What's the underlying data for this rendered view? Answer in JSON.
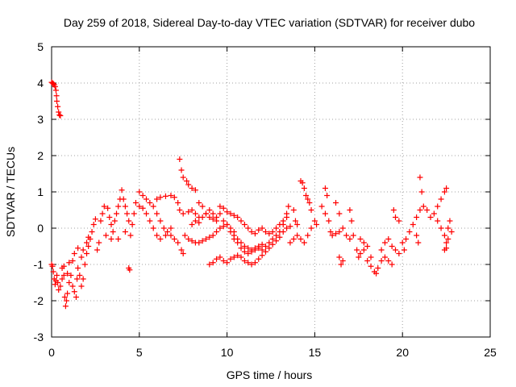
{
  "chart_data": {
    "type": "scatter",
    "title": "Day 259 of 2018, Sidereal Day-to-day VTEC variation (SDTVAR) for receiver dubo",
    "xlabel": "GPS time / hours",
    "ylabel": "SDTVAR / TECUs",
    "xlim": [
      0,
      25
    ],
    "ylim": [
      -3,
      5
    ],
    "xticks": [
      0,
      5,
      10,
      15,
      20,
      25
    ],
    "yticks": [
      -3,
      -2,
      -1,
      0,
      1,
      2,
      3,
      4,
      5
    ],
    "grid": true,
    "marker": "+",
    "color": "#ff0000",
    "series": [
      {
        "name": "SDTVAR",
        "points": [
          [
            0.0,
            4.02
          ],
          [
            0.05,
            4.0
          ],
          [
            0.1,
            3.98
          ],
          [
            0.15,
            3.95
          ],
          [
            0.2,
            3.9
          ],
          [
            0.25,
            3.8
          ],
          [
            0.28,
            3.65
          ],
          [
            0.3,
            3.5
          ],
          [
            0.35,
            3.35
          ],
          [
            0.4,
            3.2
          ],
          [
            0.45,
            3.12
          ],
          [
            0.5,
            3.1
          ],
          [
            0.0,
            -1.0
          ],
          [
            0.05,
            -1.05
          ],
          [
            0.1,
            -1.2
          ],
          [
            0.15,
            -1.4
          ],
          [
            0.2,
            -1.55
          ],
          [
            0.25,
            -1.45
          ],
          [
            0.3,
            -1.3
          ],
          [
            0.35,
            -1.5
          ],
          [
            0.4,
            -1.7
          ],
          [
            0.5,
            -1.6
          ],
          [
            0.6,
            -1.4
          ],
          [
            0.7,
            -1.3
          ],
          [
            0.75,
            -1.9
          ],
          [
            0.8,
            -2.15
          ],
          [
            0.85,
            -2.0
          ],
          [
            0.9,
            -1.8
          ],
          [
            1.0,
            -1.5
          ],
          [
            1.1,
            -1.3
          ],
          [
            1.2,
            -1.6
          ],
          [
            1.3,
            -1.75
          ],
          [
            1.4,
            -1.9
          ],
          [
            1.45,
            -1.4
          ],
          [
            1.5,
            -1.1
          ],
          [
            1.6,
            -1.3
          ],
          [
            1.7,
            -1.6
          ],
          [
            1.8,
            -1.4
          ],
          [
            1.9,
            -1.0
          ],
          [
            2.0,
            -0.7
          ],
          [
            2.1,
            -0.5
          ],
          [
            2.2,
            -0.3
          ],
          [
            2.3,
            -0.1
          ],
          [
            2.4,
            0.1
          ],
          [
            2.5,
            0.25
          ],
          [
            0.6,
            -1.1
          ],
          [
            0.7,
            -1.05
          ],
          [
            0.9,
            -1.25
          ],
          [
            1.0,
            -0.95
          ],
          [
            1.2,
            -0.9
          ],
          [
            1.3,
            -0.7
          ],
          [
            1.5,
            -0.55
          ],
          [
            1.7,
            -0.8
          ],
          [
            1.8,
            -0.6
          ],
          [
            2.0,
            -0.4
          ],
          [
            2.1,
            -0.25
          ],
          [
            2.6,
            -0.6
          ],
          [
            2.7,
            -0.4
          ],
          [
            2.8,
            0.2
          ],
          [
            2.9,
            0.4
          ],
          [
            3.0,
            0.6
          ],
          [
            3.2,
            0.55
          ],
          [
            3.3,
            0.3
          ],
          [
            3.4,
            0.1
          ],
          [
            3.5,
            -0.1
          ],
          [
            3.6,
            0.2
          ],
          [
            3.7,
            0.4
          ],
          [
            3.8,
            0.6
          ],
          [
            3.9,
            0.8
          ],
          [
            4.0,
            1.05
          ],
          [
            4.1,
            0.8
          ],
          [
            4.2,
            0.6
          ],
          [
            4.3,
            0.4
          ],
          [
            4.4,
            0.2
          ],
          [
            4.5,
            -0.2
          ],
          [
            4.6,
            0.1
          ],
          [
            4.7,
            0.4
          ],
          [
            4.8,
            0.7
          ],
          [
            3.1,
            -0.2
          ],
          [
            3.4,
            -0.3
          ],
          [
            3.8,
            -0.3
          ],
          [
            4.2,
            -0.1
          ],
          [
            4.4,
            -1.1
          ],
          [
            4.45,
            -1.15
          ],
          [
            5.0,
            1.0
          ],
          [
            5.2,
            0.9
          ],
          [
            5.4,
            0.8
          ],
          [
            5.6,
            0.7
          ],
          [
            5.8,
            0.6
          ],
          [
            6.0,
            0.4
          ],
          [
            6.2,
            0.2
          ],
          [
            6.4,
            0.0
          ],
          [
            6.6,
            -0.1
          ],
          [
            6.8,
            -0.2
          ],
          [
            7.0,
            -0.3
          ],
          [
            7.2,
            -0.4
          ],
          [
            7.4,
            -0.6
          ],
          [
            7.5,
            -0.7
          ],
          [
            5.0,
            0.6
          ],
          [
            5.2,
            0.55
          ],
          [
            5.4,
            0.4
          ],
          [
            5.6,
            0.2
          ],
          [
            5.8,
            0.0
          ],
          [
            6.0,
            -0.2
          ],
          [
            6.2,
            -0.3
          ],
          [
            6.5,
            -0.2
          ],
          [
            6.8,
            0.0
          ],
          [
            6.0,
            0.8
          ],
          [
            6.2,
            0.85
          ],
          [
            6.5,
            0.88
          ],
          [
            6.8,
            0.9
          ],
          [
            7.0,
            0.85
          ],
          [
            7.2,
            0.7
          ],
          [
            7.3,
            0.5
          ],
          [
            7.5,
            0.4
          ],
          [
            7.8,
            0.45
          ],
          [
            8.0,
            0.5
          ],
          [
            8.2,
            0.4
          ],
          [
            8.4,
            0.3
          ],
          [
            7.3,
            1.9
          ],
          [
            7.4,
            1.6
          ],
          [
            7.5,
            1.4
          ],
          [
            7.7,
            1.3
          ],
          [
            7.8,
            1.2
          ],
          [
            8.0,
            1.1
          ],
          [
            8.2,
            1.05
          ],
          [
            7.6,
            -0.2
          ],
          [
            7.8,
            -0.3
          ],
          [
            8.0,
            -0.35
          ],
          [
            8.2,
            -0.4
          ],
          [
            8.4,
            -0.4
          ],
          [
            8.6,
            -0.35
          ],
          [
            8.8,
            -0.3
          ],
          [
            9.0,
            -0.25
          ],
          [
            9.2,
            -0.2
          ],
          [
            9.4,
            -0.1
          ],
          [
            9.6,
            0.0
          ],
          [
            9.8,
            0.05
          ],
          [
            10.0,
            0.1
          ],
          [
            10.2,
            0.0
          ],
          [
            10.4,
            -0.1
          ],
          [
            8.4,
            0.7
          ],
          [
            8.6,
            0.6
          ],
          [
            8.8,
            0.4
          ],
          [
            9.0,
            0.3
          ],
          [
            9.2,
            0.25
          ],
          [
            9.4,
            0.3
          ],
          [
            9.6,
            0.4
          ],
          [
            9.8,
            0.2
          ],
          [
            10.0,
            0.1
          ],
          [
            10.2,
            -0.1
          ],
          [
            10.4,
            -0.2
          ],
          [
            10.6,
            -0.3
          ],
          [
            10.8,
            -0.4
          ],
          [
            11.0,
            -0.5
          ],
          [
            11.2,
            -0.55
          ],
          [
            11.4,
            -0.6
          ],
          [
            11.6,
            -0.55
          ],
          [
            11.8,
            -0.5
          ],
          [
            12.0,
            -0.45
          ],
          [
            8.0,
            0.1
          ],
          [
            8.2,
            0.2
          ],
          [
            8.4,
            0.15
          ],
          [
            8.6,
            0.3
          ],
          [
            8.8,
            0.4
          ],
          [
            9.0,
            0.5
          ],
          [
            9.2,
            0.4
          ],
          [
            9.4,
            0.2
          ],
          [
            9.0,
            -1.0
          ],
          [
            9.2,
            -0.95
          ],
          [
            9.4,
            -0.85
          ],
          [
            9.6,
            -0.8
          ],
          [
            9.8,
            -0.9
          ],
          [
            10.0,
            -0.95
          ],
          [
            10.2,
            -0.85
          ],
          [
            10.4,
            -0.8
          ],
          [
            10.6,
            -0.75
          ],
          [
            10.8,
            -0.8
          ],
          [
            11.0,
            -0.9
          ],
          [
            11.2,
            -0.95
          ],
          [
            11.4,
            -1.0
          ],
          [
            11.6,
            -0.95
          ],
          [
            11.8,
            -0.85
          ],
          [
            12.0,
            -0.75
          ],
          [
            12.2,
            -0.65
          ],
          [
            12.4,
            -0.55
          ],
          [
            12.6,
            -0.45
          ],
          [
            12.8,
            -0.35
          ],
          [
            13.0,
            -0.25
          ],
          [
            13.2,
            -0.1
          ],
          [
            13.4,
            0.0
          ],
          [
            13.6,
            0.05
          ],
          [
            10.4,
            -0.3
          ],
          [
            10.6,
            -0.4
          ],
          [
            10.8,
            -0.55
          ],
          [
            11.0,
            -0.65
          ],
          [
            11.2,
            -0.7
          ],
          [
            11.4,
            -0.65
          ],
          [
            11.6,
            -0.6
          ],
          [
            11.8,
            -0.55
          ],
          [
            12.0,
            -0.6
          ],
          [
            12.2,
            -0.5
          ],
          [
            12.4,
            -0.4
          ],
          [
            12.6,
            -0.3
          ],
          [
            12.8,
            -0.2
          ],
          [
            13.0,
            -0.1
          ],
          [
            13.2,
            0.1
          ],
          [
            13.4,
            0.4
          ],
          [
            13.5,
            0.6
          ],
          [
            9.6,
            0.6
          ],
          [
            9.8,
            0.55
          ],
          [
            10.0,
            0.45
          ],
          [
            10.2,
            0.4
          ],
          [
            10.4,
            0.35
          ],
          [
            10.6,
            0.3
          ],
          [
            10.8,
            0.2
          ],
          [
            11.0,
            0.1
          ],
          [
            11.2,
            0.0
          ],
          [
            11.4,
            -0.1
          ],
          [
            11.6,
            -0.15
          ],
          [
            11.8,
            -0.05
          ],
          [
            12.0,
            0.0
          ],
          [
            12.2,
            -0.1
          ],
          [
            12.4,
            -0.15
          ],
          [
            12.6,
            -0.1
          ],
          [
            12.8,
            0.0
          ],
          [
            13.0,
            0.1
          ],
          [
            13.2,
            0.2
          ],
          [
            13.4,
            0.3
          ],
          [
            13.6,
            -0.4
          ],
          [
            13.8,
            -0.3
          ],
          [
            14.0,
            -0.2
          ],
          [
            14.2,
            -0.3
          ],
          [
            14.4,
            -0.4
          ],
          [
            14.6,
            -0.2
          ],
          [
            14.8,
            0.0
          ],
          [
            15.0,
            0.2
          ],
          [
            15.1,
            0.1
          ],
          [
            14.2,
            1.3
          ],
          [
            14.3,
            1.25
          ],
          [
            14.4,
            1.1
          ],
          [
            14.5,
            0.9
          ],
          [
            14.6,
            0.8
          ],
          [
            14.7,
            0.7
          ],
          [
            14.8,
            0.5
          ],
          [
            13.8,
            0.5
          ],
          [
            13.9,
            0.2
          ],
          [
            14.0,
            0.1
          ],
          [
            15.4,
            0.6
          ],
          [
            15.6,
            0.4
          ],
          [
            15.8,
            0.2
          ],
          [
            15.9,
            -0.1
          ],
          [
            16.0,
            -0.2
          ],
          [
            16.2,
            -0.15
          ],
          [
            16.4,
            -0.1
          ],
          [
            16.6,
            0.0
          ],
          [
            16.8,
            -0.2
          ],
          [
            17.0,
            -0.3
          ],
          [
            17.2,
            -0.2
          ],
          [
            15.6,
            1.1
          ],
          [
            15.7,
            0.9
          ],
          [
            16.4,
            -0.8
          ],
          [
            16.5,
            -1.0
          ],
          [
            16.6,
            -0.9
          ],
          [
            16.2,
            0.7
          ],
          [
            16.4,
            0.4
          ],
          [
            17.0,
            0.5
          ],
          [
            17.1,
            0.2
          ],
          [
            17.6,
            -0.3
          ],
          [
            17.8,
            -0.4
          ],
          [
            18.0,
            -0.5
          ],
          [
            18.2,
            -0.8
          ],
          [
            18.4,
            -1.2
          ],
          [
            18.5,
            -1.25
          ],
          [
            18.6,
            -1.1
          ],
          [
            18.8,
            -0.9
          ],
          [
            19.0,
            -0.8
          ],
          [
            19.2,
            -0.9
          ],
          [
            19.4,
            -1.0
          ],
          [
            17.4,
            -0.6
          ],
          [
            17.5,
            -0.8
          ],
          [
            17.6,
            -0.7
          ],
          [
            17.8,
            -0.6
          ],
          [
            18.0,
            -0.9
          ],
          [
            18.2,
            -1.05
          ],
          [
            18.8,
            -0.6
          ],
          [
            19.0,
            -0.4
          ],
          [
            19.2,
            -0.3
          ],
          [
            19.4,
            -0.5
          ],
          [
            19.6,
            -0.6
          ],
          [
            19.8,
            -0.7
          ],
          [
            19.5,
            0.5
          ],
          [
            19.6,
            0.3
          ],
          [
            19.8,
            0.2
          ],
          [
            20.0,
            -0.4
          ],
          [
            20.1,
            -0.6
          ],
          [
            20.2,
            -0.3
          ],
          [
            20.4,
            -0.1
          ],
          [
            20.6,
            0.1
          ],
          [
            20.8,
            0.3
          ],
          [
            21.0,
            0.5
          ],
          [
            21.2,
            0.6
          ],
          [
            21.4,
            0.5
          ],
          [
            21.6,
            0.3
          ],
          [
            21.8,
            0.4
          ],
          [
            22.0,
            0.6
          ],
          [
            22.2,
            0.8
          ],
          [
            22.4,
            1.0
          ],
          [
            22.5,
            1.1
          ],
          [
            21.0,
            1.4
          ],
          [
            21.1,
            1.0
          ],
          [
            20.8,
            -0.2
          ],
          [
            20.9,
            -0.4
          ],
          [
            22.0,
            0.2
          ],
          [
            22.2,
            0.0
          ],
          [
            22.4,
            -0.2
          ],
          [
            22.5,
            -0.4
          ],
          [
            22.6,
            -0.3
          ],
          [
            22.4,
            -0.6
          ],
          [
            22.5,
            -0.55
          ],
          [
            22.6,
            0.0
          ],
          [
            22.7,
            0.2
          ],
          [
            22.8,
            -0.1
          ]
        ]
      }
    ]
  }
}
